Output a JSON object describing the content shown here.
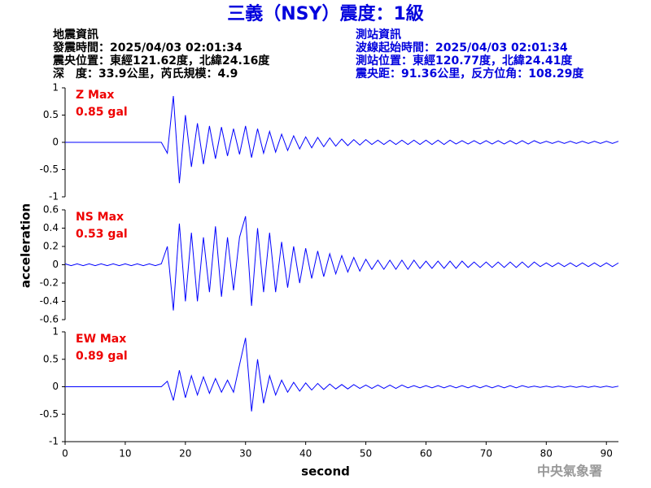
{
  "title": "三義（NSY）震度：1級",
  "info_left": [
    "地震資訊",
    "發震時間：2025/04/03 02:01:34",
    "震央位置：東經121.62度，北緯24.16度",
    "深　度：33.9公里，芮氏規模：4.9"
  ],
  "info_right": [
    "測站資訊",
    "波線起始時間：2025/04/03 02:01:34",
    "測站位置：東經120.77度，北緯24.41度",
    "震央距：91.36公里，反方位角：108.29度"
  ],
  "ylabel": "acceleration",
  "xlabel": "second",
  "footer": "中央氣象署",
  "chart_data": [
    {
      "type": "line",
      "label": "Z Max",
      "max_label": "0.85 gal",
      "color": "#0000ff",
      "xlim": [
        0,
        92
      ],
      "ylim": [
        -1,
        1
      ],
      "yticks": [
        -1,
        -0.5,
        0,
        0.5,
        1
      ],
      "x": [
        0,
        1,
        2,
        3,
        4,
        5,
        6,
        7,
        8,
        9,
        10,
        11,
        12,
        13,
        14,
        15,
        16,
        17,
        18,
        19,
        20,
        21,
        22,
        23,
        24,
        25,
        26,
        27,
        28,
        29,
        30,
        31,
        32,
        33,
        34,
        35,
        36,
        37,
        38,
        39,
        40,
        41,
        42,
        43,
        44,
        45,
        46,
        47,
        48,
        49,
        50,
        51,
        52,
        53,
        54,
        55,
        56,
        57,
        58,
        59,
        60,
        61,
        62,
        63,
        64,
        65,
        66,
        67,
        68,
        69,
        70,
        71,
        72,
        73,
        74,
        75,
        76,
        77,
        78,
        79,
        80,
        81,
        82,
        83,
        84,
        85,
        86,
        87,
        88,
        89,
        90,
        91,
        92
      ],
      "values": [
        0,
        0,
        0,
        0,
        0,
        0,
        0,
        0,
        0,
        0,
        0,
        0,
        0,
        0,
        0,
        0,
        0,
        -0.2,
        0.85,
        -0.75,
        0.5,
        -0.45,
        0.35,
        -0.4,
        0.3,
        -0.3,
        0.28,
        -0.25,
        0.25,
        -0.22,
        0.3,
        -0.28,
        0.25,
        -0.2,
        0.2,
        -0.18,
        0.15,
        -0.15,
        0.12,
        -0.12,
        0.1,
        -0.1,
        0.09,
        -0.08,
        0.08,
        -0.07,
        0.06,
        -0.06,
        0.05,
        -0.05,
        0.05,
        -0.04,
        0.04,
        -0.04,
        0.04,
        -0.04,
        0.04,
        -0.04,
        0.04,
        -0.04,
        0.04,
        -0.04,
        0.04,
        -0.04,
        0.04,
        -0.03,
        0.03,
        -0.03,
        0.03,
        -0.03,
        0.03,
        -0.03,
        0.03,
        -0.03,
        0.03,
        -0.03,
        0.03,
        -0.03,
        0.03,
        -0.02,
        0.02,
        -0.02,
        0.02,
        -0.02,
        0.02,
        -0.02,
        0.02,
        -0.02,
        0.02,
        -0.02,
        0.02,
        -0.02,
        0.02
      ]
    },
    {
      "type": "line",
      "label": "NS Max",
      "max_label": "0.53 gal",
      "color": "#0000ff",
      "xlim": [
        0,
        92
      ],
      "ylim": [
        -0.6,
        0.6
      ],
      "yticks": [
        -0.6,
        -0.4,
        -0.2,
        0,
        0.2,
        0.4,
        0.6
      ],
      "x": [
        0,
        1,
        2,
        3,
        4,
        5,
        6,
        7,
        8,
        9,
        10,
        11,
        12,
        13,
        14,
        15,
        16,
        17,
        18,
        19,
        20,
        21,
        22,
        23,
        24,
        25,
        26,
        27,
        28,
        29,
        30,
        31,
        32,
        33,
        34,
        35,
        36,
        37,
        38,
        39,
        40,
        41,
        42,
        43,
        44,
        45,
        46,
        47,
        48,
        49,
        50,
        51,
        52,
        53,
        54,
        55,
        56,
        57,
        58,
        59,
        60,
        61,
        62,
        63,
        64,
        65,
        66,
        67,
        68,
        69,
        70,
        71,
        72,
        73,
        74,
        75,
        76,
        77,
        78,
        79,
        80,
        81,
        82,
        83,
        84,
        85,
        86,
        87,
        88,
        89,
        90,
        91,
        92
      ],
      "values": [
        0.01,
        -0.01,
        0.01,
        -0.01,
        0.01,
        -0.01,
        0.01,
        -0.01,
        0.01,
        -0.01,
        0.01,
        -0.01,
        0.01,
        -0.01,
        0.01,
        -0.01,
        0.01,
        0.2,
        -0.5,
        0.45,
        -0.4,
        0.35,
        -0.4,
        0.3,
        -0.3,
        0.42,
        -0.35,
        0.3,
        -0.28,
        0.3,
        0.53,
        -0.45,
        0.4,
        -0.3,
        0.35,
        -0.3,
        0.25,
        -0.25,
        0.2,
        -0.2,
        0.18,
        -0.15,
        0.15,
        -0.13,
        0.12,
        -0.1,
        0.1,
        -0.08,
        0.08,
        -0.07,
        0.06,
        -0.05,
        0.05,
        -0.05,
        0.05,
        -0.05,
        0.05,
        -0.05,
        0.05,
        -0.04,
        0.04,
        -0.04,
        0.04,
        -0.04,
        0.04,
        -0.04,
        0.04,
        -0.03,
        0.03,
        -0.03,
        0.03,
        -0.03,
        0.03,
        -0.03,
        0.03,
        -0.03,
        0.03,
        -0.03,
        0.03,
        -0.02,
        0.02,
        -0.02,
        0.02,
        -0.02,
        0.02,
        -0.02,
        0.02,
        -0.02,
        0.02,
        -0.02,
        0.02,
        -0.02,
        0.02
      ]
    },
    {
      "type": "line",
      "label": "EW Max",
      "max_label": "0.89 gal",
      "color": "#0000ff",
      "xlim": [
        0,
        92
      ],
      "ylim": [
        -1,
        1
      ],
      "yticks": [
        -1,
        -0.5,
        0,
        0.5,
        1
      ],
      "xticks": [
        0,
        10,
        20,
        30,
        40,
        50,
        60,
        70,
        80,
        90
      ],
      "x": [
        0,
        1,
        2,
        3,
        4,
        5,
        6,
        7,
        8,
        9,
        10,
        11,
        12,
        13,
        14,
        15,
        16,
        17,
        18,
        19,
        20,
        21,
        22,
        23,
        24,
        25,
        26,
        27,
        28,
        29,
        30,
        31,
        32,
        33,
        34,
        35,
        36,
        37,
        38,
        39,
        40,
        41,
        42,
        43,
        44,
        45,
        46,
        47,
        48,
        49,
        50,
        51,
        52,
        53,
        54,
        55,
        56,
        57,
        58,
        59,
        60,
        61,
        62,
        63,
        64,
        65,
        66,
        67,
        68,
        69,
        70,
        71,
        72,
        73,
        74,
        75,
        76,
        77,
        78,
        79,
        80,
        81,
        82,
        83,
        84,
        85,
        86,
        87,
        88,
        89,
        90,
        91,
        92
      ],
      "values": [
        0,
        0,
        0,
        0,
        0,
        0,
        0,
        0,
        0,
        0,
        0,
        0,
        0,
        0,
        0,
        0,
        0,
        0.1,
        -0.25,
        0.3,
        -0.2,
        0.2,
        -0.15,
        0.18,
        -0.12,
        0.15,
        -0.1,
        0.12,
        -0.1,
        0.4,
        0.89,
        -0.45,
        0.5,
        -0.3,
        0.2,
        -0.15,
        0.12,
        -0.1,
        0.08,
        -0.08,
        0.07,
        -0.06,
        0.06,
        -0.05,
        0.05,
        -0.04,
        0.04,
        -0.04,
        0.04,
        -0.03,
        0.03,
        -0.03,
        0.03,
        -0.03,
        0.03,
        -0.03,
        0.03,
        -0.02,
        0.02,
        -0.02,
        0.02,
        -0.02,
        0.02,
        -0.02,
        0.02,
        -0.02,
        0.02,
        -0.02,
        0.02,
        -0.02,
        0.02,
        -0.02,
        0.02,
        -0.02,
        0.02,
        -0.02,
        0.02,
        -0.01,
        0.01,
        -0.01,
        0.01,
        -0.01,
        0.01,
        -0.01,
        0.01,
        -0.01,
        0.01,
        -0.01,
        0.01,
        -0.01,
        0.01,
        -0.01,
        0.01
      ]
    }
  ]
}
